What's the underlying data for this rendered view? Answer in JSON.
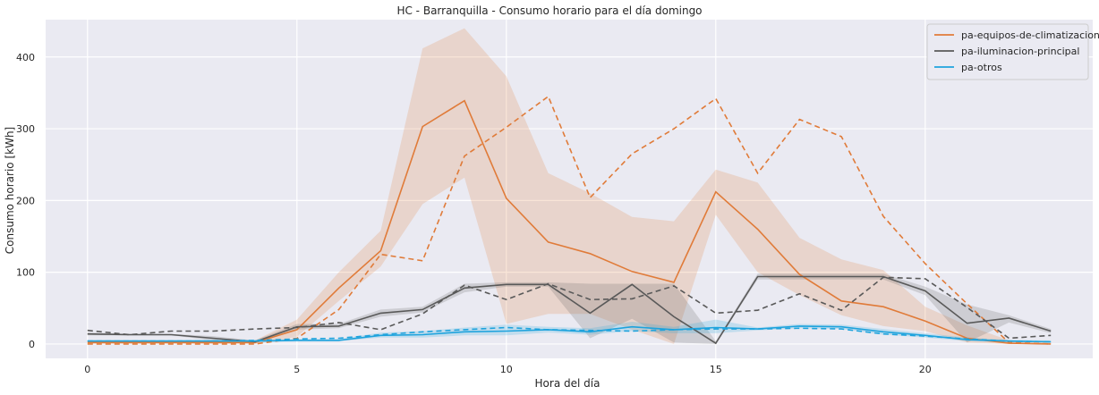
{
  "chart_data": {
    "type": "line",
    "title": "HC - Barranquilla - Consumo horario para el día domingo",
    "xlabel": "Hora del día",
    "ylabel": "Consumo horario [kWh]",
    "xlim": [
      -1,
      24
    ],
    "ylim": [
      -20,
      452
    ],
    "xticks": [
      0,
      5,
      10,
      15,
      20
    ],
    "yticks": [
      0,
      100,
      200,
      300,
      400
    ],
    "grid": true,
    "legend_position": "top-right",
    "background": "#eaeaf2",
    "x": [
      0,
      1,
      2,
      3,
      4,
      5,
      6,
      7,
      8,
      9,
      10,
      11,
      12,
      13,
      14,
      15,
      16,
      17,
      18,
      19,
      20,
      21,
      22,
      23
    ],
    "series": [
      {
        "name": "pa-equipos-de-climatizacion",
        "color": "#e07b39",
        "values": [
          2,
          2,
          2,
          2,
          2,
          20,
          78,
          130,
          303,
          339,
          203,
          142,
          126,
          101,
          86,
          212,
          160,
          97,
          60,
          52,
          32,
          8,
          1,
          0
        ],
        "dashed_values": [
          0,
          0,
          0,
          0,
          0,
          8,
          48,
          125,
          116,
          262,
          302,
          345,
          204,
          265,
          300,
          342,
          238,
          313,
          289,
          178,
          112,
          56,
          2,
          0
        ],
        "band_lower": [
          0,
          0,
          0,
          0,
          0,
          10,
          60,
          108,
          195,
          232,
          28,
          42,
          42,
          20,
          0,
          180,
          100,
          68,
          40,
          25,
          18,
          2,
          0,
          0
        ],
        "band_upper": [
          5,
          5,
          5,
          5,
          5,
          34,
          100,
          158,
          412,
          440,
          373,
          238,
          210,
          177,
          171,
          243,
          225,
          148,
          118,
          103,
          52,
          26,
          5,
          3
        ]
      },
      {
        "name": "pa-iluminacion-principal",
        "color": "#595959",
        "values": [
          14,
          13,
          13,
          8,
          3,
          24,
          25,
          43,
          48,
          78,
          83,
          83,
          43,
          83,
          38,
          1,
          94,
          94,
          94,
          94,
          74,
          29,
          36,
          18
        ],
        "dashed_values": [
          19,
          13,
          18,
          18,
          21,
          23,
          30,
          20,
          42,
          82,
          62,
          84,
          62,
          63,
          81,
          43,
          47,
          70,
          47,
          93,
          91,
          51,
          8,
          12
        ],
        "band_lower": [
          12,
          12,
          12,
          5,
          2,
          20,
          22,
          38,
          44,
          72,
          80,
          80,
          8,
          35,
          2,
          0,
          90,
          90,
          90,
          90,
          68,
          2,
          30,
          15
        ],
        "band_upper": [
          16,
          14,
          14,
          11,
          5,
          28,
          28,
          48,
          52,
          84,
          86,
          86,
          84,
          84,
          84,
          4,
          98,
          98,
          98,
          98,
          80,
          55,
          40,
          21
        ]
      },
      {
        "name": "pa-otros",
        "color": "#1ea3dd",
        "values": [
          4,
          4,
          4,
          4,
          4,
          5,
          5,
          12,
          13,
          17,
          18,
          20,
          17,
          24,
          20,
          23,
          21,
          25,
          24,
          17,
          12,
          6,
          4,
          3
        ],
        "dashed_values": [
          4,
          4,
          4,
          4,
          5,
          7,
          8,
          13,
          17,
          20,
          23,
          20,
          19,
          18,
          20,
          21,
          21,
          22,
          21,
          14,
          11,
          7,
          4,
          3
        ],
        "band_lower": [
          3,
          3,
          3,
          3,
          3,
          4,
          4,
          9,
          9,
          12,
          12,
          16,
          13,
          18,
          15,
          15,
          19,
          22,
          21,
          13,
          9,
          4,
          3,
          2
        ],
        "band_upper": [
          6,
          6,
          6,
          6,
          6,
          7,
          7,
          16,
          18,
          23,
          27,
          24,
          22,
          31,
          24,
          34,
          23,
          28,
          27,
          21,
          15,
          9,
          6,
          5
        ]
      }
    ]
  }
}
